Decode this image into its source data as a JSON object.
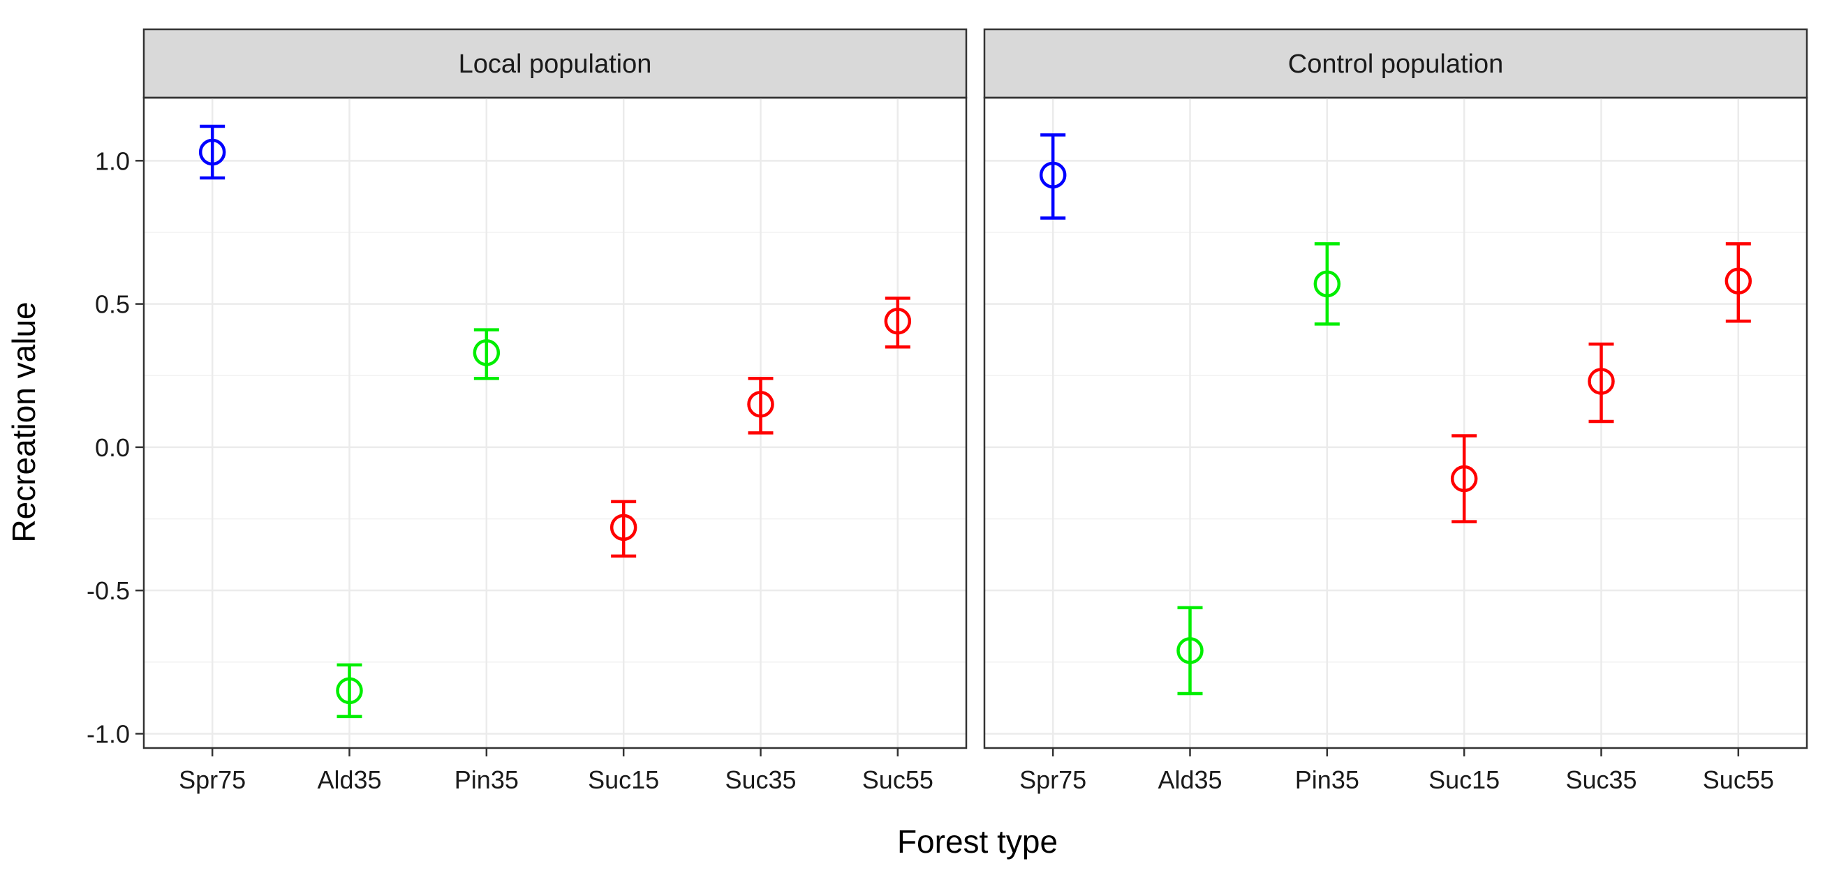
{
  "chart_data": {
    "type": "scatter",
    "xlabel": "Forest type",
    "ylabel": "Recreation value",
    "ylim": [
      -1.05,
      1.22
    ],
    "yticks": [
      -1.0,
      -0.5,
      0.0,
      0.5,
      1.0
    ],
    "ytick_labels": [
      "-1.0",
      "-0.5",
      "0.0",
      "0.5",
      "1.0"
    ],
    "categories": [
      "Spr75",
      "Ald35",
      "Pin35",
      "Suc15",
      "Suc35",
      "Suc55"
    ],
    "category_colors": [
      "#0000ff",
      "#00ee00",
      "#00ee00",
      "#ff0000",
      "#ff0000",
      "#ff0000"
    ],
    "grid": true,
    "panels": [
      {
        "title": "Local population",
        "series": [
          {
            "category": "Spr75",
            "value": 1.03,
            "lower": 0.94,
            "upper": 1.12
          },
          {
            "category": "Ald35",
            "value": -0.85,
            "lower": -0.94,
            "upper": -0.76
          },
          {
            "category": "Pin35",
            "value": 0.33,
            "lower": 0.24,
            "upper": 0.41
          },
          {
            "category": "Suc15",
            "value": -0.28,
            "lower": -0.38,
            "upper": -0.19
          },
          {
            "category": "Suc35",
            "value": 0.15,
            "lower": 0.05,
            "upper": 0.24
          },
          {
            "category": "Suc55",
            "value": 0.44,
            "lower": 0.35,
            "upper": 0.52
          }
        ]
      },
      {
        "title": "Control population",
        "series": [
          {
            "category": "Spr75",
            "value": 0.95,
            "lower": 0.8,
            "upper": 1.09
          },
          {
            "category": "Ald35",
            "value": -0.71,
            "lower": -0.86,
            "upper": -0.56
          },
          {
            "category": "Pin35",
            "value": 0.57,
            "lower": 0.43,
            "upper": 0.71
          },
          {
            "category": "Suc15",
            "value": -0.11,
            "lower": -0.26,
            "upper": 0.04
          },
          {
            "category": "Suc35",
            "value": 0.23,
            "lower": 0.09,
            "upper": 0.36
          },
          {
            "category": "Suc55",
            "value": 0.58,
            "lower": 0.44,
            "upper": 0.71
          }
        ]
      }
    ]
  }
}
